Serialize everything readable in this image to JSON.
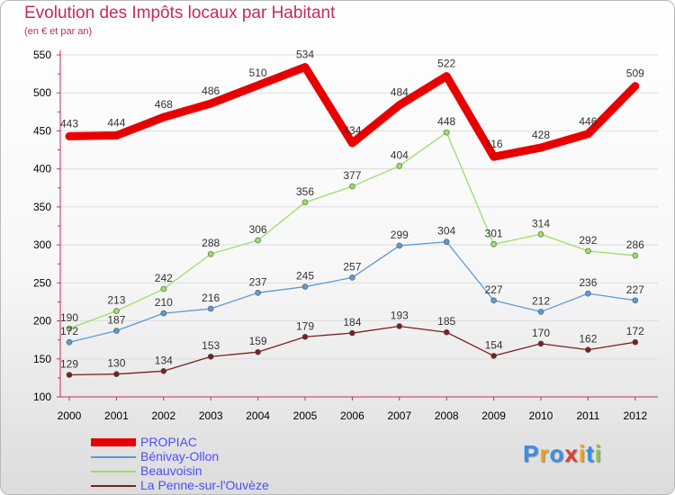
{
  "header": {
    "title": "Evolution des Impôts locaux par Habitant",
    "subtitle": "(en € et par an)"
  },
  "chart_data": {
    "type": "line",
    "title": "Evolution des Impôts locaux par Habitant",
    "subtitle": "(en € et par an)",
    "xlabel": "",
    "ylabel": "",
    "categories": [
      "2000",
      "2001",
      "2002",
      "2003",
      "2004",
      "2005",
      "2006",
      "2007",
      "2008",
      "2009",
      "2010",
      "2011",
      "2012"
    ],
    "yticks": [
      100,
      150,
      200,
      250,
      300,
      350,
      400,
      450,
      500,
      550
    ],
    "ylim": [
      100,
      550
    ],
    "grid": true,
    "series": [
      {
        "name": "PROPIAC",
        "color": "#e80000",
        "values": [
          443,
          444,
          468,
          486,
          510,
          534,
          434,
          484,
          522,
          416,
          428,
          446,
          509
        ]
      },
      {
        "name": "Bénivay-Ollon",
        "color": "#5b9bd5",
        "values": [
          172,
          187,
          210,
          216,
          237,
          245,
          257,
          299,
          304,
          227,
          212,
          236,
          227
        ]
      },
      {
        "name": "Beauvoisin",
        "color": "#99e066",
        "values": [
          190,
          213,
          242,
          288,
          306,
          356,
          377,
          404,
          448,
          301,
          314,
          292,
          286
        ]
      },
      {
        "name": "La Penne-sur-l'Ouvèze",
        "color": "#7a2020",
        "values": [
          129,
          130,
          134,
          153,
          159,
          179,
          184,
          193,
          185,
          154,
          170,
          162,
          172
        ]
      }
    ]
  },
  "legend": {
    "items": [
      "PROPIAC",
      "Bénivay-Ollon",
      "Beauvoisin",
      "La Penne-sur-l'Ouvèze"
    ]
  },
  "logo": {
    "letters": [
      "P",
      "r",
      "o",
      "x",
      "i",
      "t",
      "i"
    ],
    "colors": [
      "#3a8ee6",
      "#f2a21c",
      "#3a8ee6",
      "#e03a2f",
      "#f2a21c",
      "#3a8ee6",
      "#8bc34a"
    ]
  }
}
